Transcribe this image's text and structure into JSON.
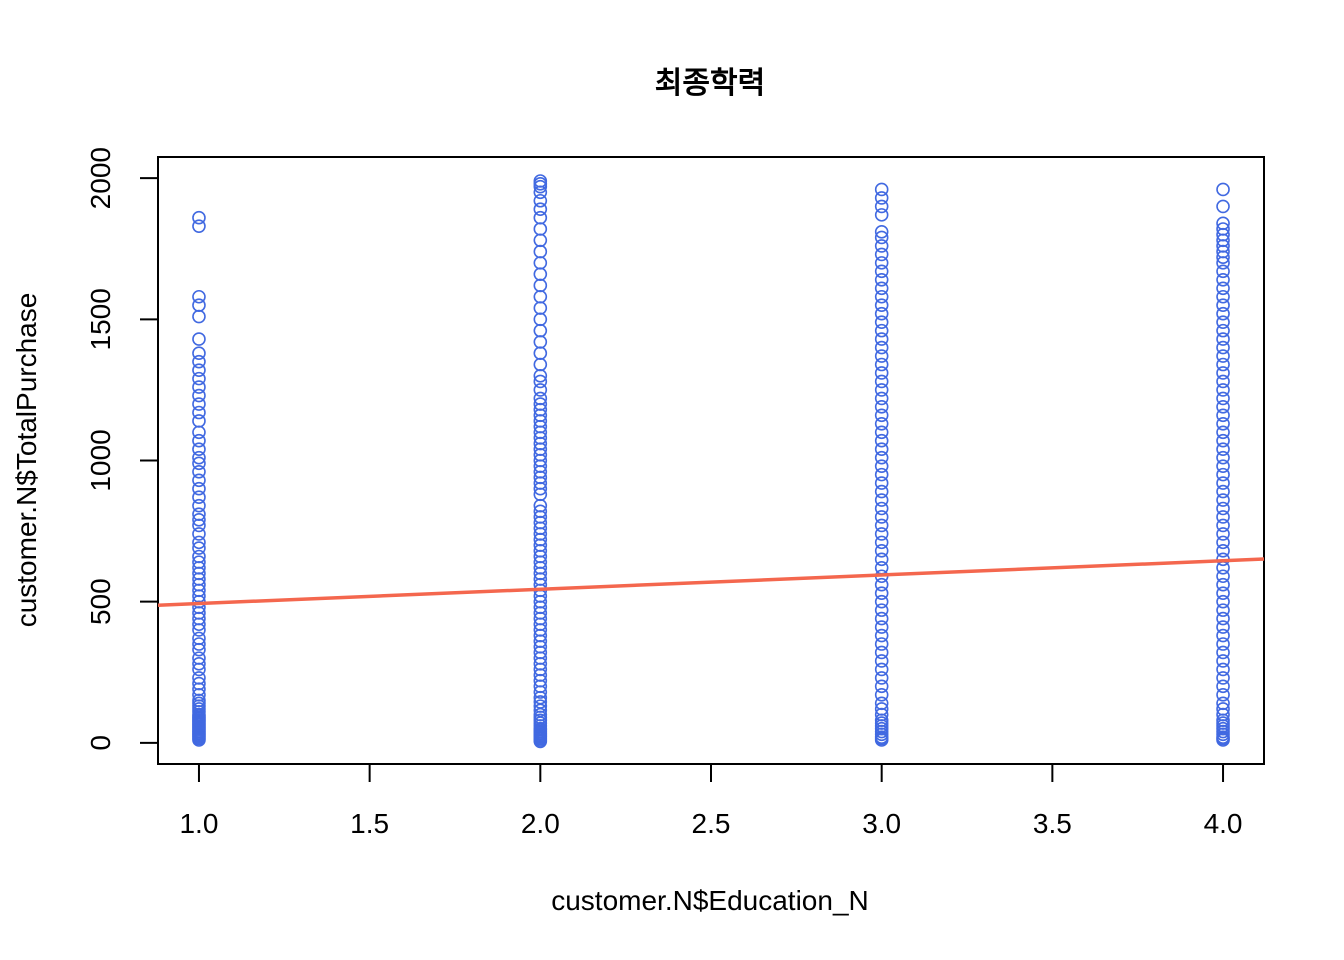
{
  "chart_data": {
    "type": "scatter",
    "title": "최종학력",
    "xlabel": "customer.N$Education_N",
    "ylabel": "customer.N$TotalPurchase",
    "xlim": [
      0.88,
      4.12
    ],
    "ylim": [
      -75,
      2075
    ],
    "x_ticks": [
      1.0,
      1.5,
      2.0,
      2.5,
      3.0,
      3.5,
      4.0
    ],
    "x_tick_labels": [
      "1.0",
      "1.5",
      "2.0",
      "2.5",
      "3.0",
      "3.5",
      "4.0"
    ],
    "y_ticks": [
      0,
      500,
      1000,
      1500,
      2000
    ],
    "y_tick_labels": [
      "0",
      "500",
      "1000",
      "1500",
      "2000"
    ],
    "point_color": "#4169E1",
    "line_color": "#F4674E",
    "grid": false,
    "legend": "none",
    "series": [
      {
        "x": 1,
        "values": [
          10,
          15,
          20,
          25,
          30,
          35,
          40,
          45,
          50,
          55,
          60,
          65,
          70,
          75,
          80,
          85,
          90,
          95,
          100,
          110,
          120,
          130,
          140,
          150,
          170,
          190,
          210,
          230,
          260,
          280,
          300,
          330,
          350,
          370,
          400,
          420,
          440,
          460,
          480,
          500,
          520,
          540,
          560,
          580,
          600,
          620,
          640,
          660,
          690,
          710,
          740,
          770,
          790,
          810,
          840,
          870,
          900,
          930,
          960,
          990,
          1010,
          1040,
          1070,
          1100,
          1140,
          1170,
          1200,
          1230,
          1260,
          1290,
          1320,
          1350,
          1380,
          1430,
          1510,
          1550,
          1580,
          1830,
          1860
        ]
      },
      {
        "x": 2,
        "values": [
          5,
          10,
          15,
          20,
          25,
          30,
          35,
          40,
          45,
          50,
          60,
          70,
          80,
          90,
          100,
          115,
          130,
          145,
          160,
          180,
          200,
          220,
          240,
          260,
          280,
          300,
          320,
          340,
          360,
          380,
          400,
          420,
          440,
          460,
          480,
          500,
          520,
          540,
          560,
          580,
          600,
          620,
          640,
          660,
          680,
          700,
          720,
          740,
          760,
          780,
          800,
          820,
          840,
          880,
          900,
          920,
          940,
          960,
          980,
          1000,
          1020,
          1040,
          1060,
          1080,
          1100,
          1120,
          1140,
          1160,
          1180,
          1200,
          1220,
          1250,
          1280,
          1300,
          1340,
          1380,
          1420,
          1460,
          1500,
          1540,
          1580,
          1620,
          1660,
          1700,
          1740,
          1780,
          1820,
          1860,
          1890,
          1920,
          1950,
          1970,
          1980,
          1990
        ]
      },
      {
        "x": 3,
        "values": [
          10,
          15,
          20,
          30,
          40,
          50,
          60,
          70,
          80,
          100,
          120,
          140,
          170,
          200,
          230,
          260,
          290,
          320,
          350,
          380,
          410,
          440,
          470,
          500,
          530,
          560,
          590,
          620,
          650,
          680,
          710,
          740,
          770,
          800,
          830,
          860,
          890,
          920,
          950,
          980,
          1010,
          1040,
          1070,
          1100,
          1130,
          1160,
          1190,
          1220,
          1250,
          1280,
          1310,
          1340,
          1370,
          1400,
          1430,
          1460,
          1490,
          1520,
          1550,
          1580,
          1610,
          1640,
          1670,
          1700,
          1730,
          1760,
          1790,
          1810,
          1870,
          1900,
          1930,
          1960
        ]
      },
      {
        "x": 4,
        "values": [
          10,
          15,
          20,
          30,
          40,
          50,
          60,
          70,
          80,
          100,
          120,
          140,
          170,
          200,
          230,
          260,
          290,
          320,
          350,
          380,
          410,
          440,
          470,
          500,
          530,
          560,
          590,
          620,
          650,
          680,
          710,
          740,
          770,
          800,
          830,
          860,
          890,
          920,
          950,
          980,
          1010,
          1040,
          1070,
          1100,
          1130,
          1160,
          1190,
          1220,
          1250,
          1280,
          1310,
          1340,
          1370,
          1400,
          1430,
          1460,
          1490,
          1520,
          1550,
          1580,
          1610,
          1640,
          1670,
          1700,
          1720,
          1740,
          1760,
          1780,
          1800,
          1820,
          1840,
          1900,
          1960
        ]
      }
    ],
    "regression_line": {
      "intercept": 443,
      "slope": 50.5
    }
  }
}
